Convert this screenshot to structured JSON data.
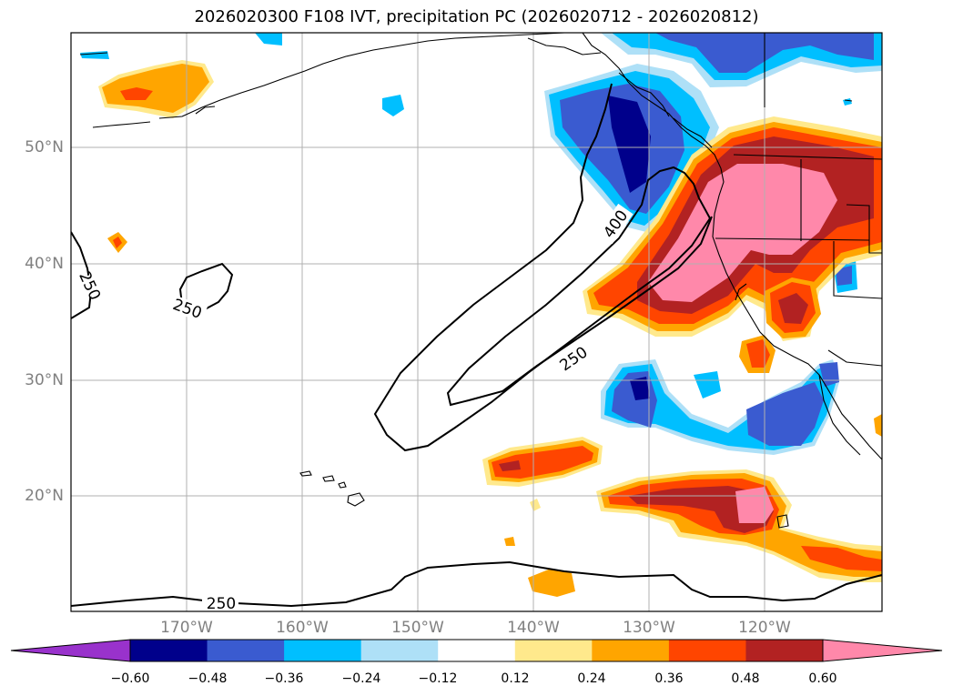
{
  "title": "2026020300 F108 IVT, precipitation PC (2026020712 - 2026020812)",
  "lat_labels": [
    "50°N",
    "40°N",
    "30°N",
    "20°N"
  ],
  "lon_labels": [
    "170°W",
    "160°W",
    "150°W",
    "140°W",
    "130°W",
    "120°W"
  ],
  "contour_labels": [
    "250",
    "250",
    "400",
    "250",
    "250"
  ],
  "colorbar": {
    "ticks": [
      "−0.60",
      "−0.48",
      "−0.36",
      "−0.24",
      "−0.12",
      "0.12",
      "0.24",
      "0.36",
      "0.48",
      "0.60"
    ],
    "colors": [
      "#9932cc",
      "#00008b",
      "#3a5bd0",
      "#00bfff",
      "#aee0f7",
      "#ffffff",
      "#ffe98c",
      "#ffa500",
      "#ff4500",
      "#b22222",
      "#ff88aa"
    ]
  }
}
